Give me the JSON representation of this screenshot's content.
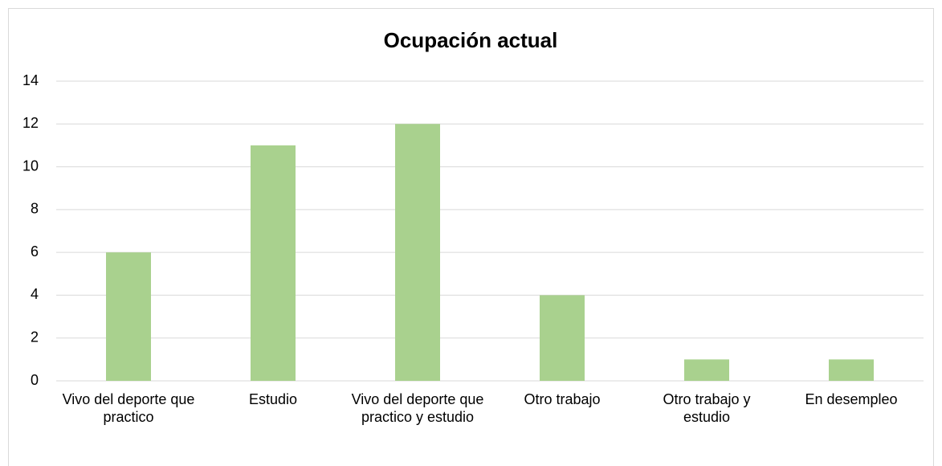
{
  "chart_data": {
    "type": "bar",
    "title": "Ocupación actual",
    "categories": [
      "Vivo del deporte que practico",
      "Estudio",
      "Vivo del deporte que practico y estudio",
      "Otro trabajo",
      "Otro trabajo y estudio",
      "En desempleo"
    ],
    "values": [
      6,
      11,
      12,
      4,
      1,
      1
    ],
    "color": "#a9d18e",
    "ylim": [
      0,
      14
    ],
    "yticks": [
      0,
      2,
      4,
      6,
      8,
      10,
      12,
      14
    ],
    "grid": true
  }
}
